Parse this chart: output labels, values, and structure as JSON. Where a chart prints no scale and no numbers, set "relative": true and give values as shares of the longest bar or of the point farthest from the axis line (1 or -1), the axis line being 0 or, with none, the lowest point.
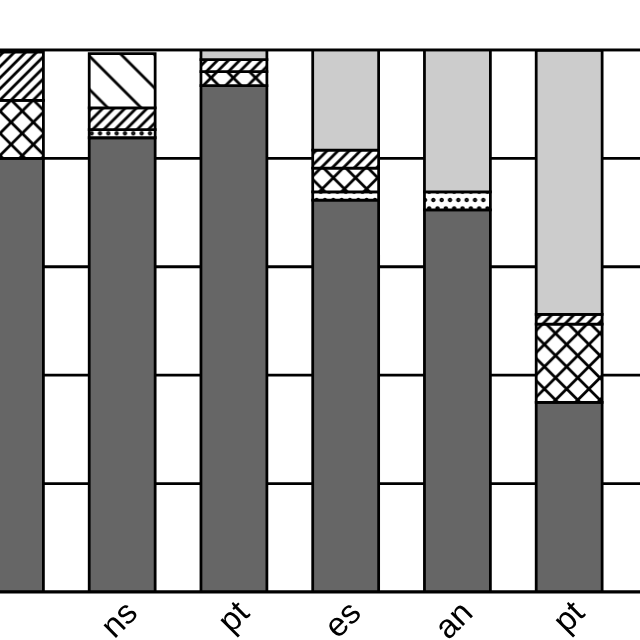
{
  "chart_data": {
    "type": "bar",
    "stacked": true,
    "relative": true,
    "grid": "y",
    "categories": [
      null,
      "ns",
      "pt",
      "es",
      "an",
      "pt"
    ],
    "series": [
      {
        "color": "#666666",
        "values": [
          0.8,
          0.838,
          0.934,
          0.723,
          0.705,
          0.35
        ]
      },
      {
        "color": "#000000",
        "values": [
          null,
          0.015,
          null,
          0.015,
          0.033,
          null
        ]
      },
      {
        "color": "#000000",
        "values": [
          0.107,
          null,
          0.026,
          0.044,
          null,
          0.144
        ]
      },
      {
        "color": "#000000",
        "values": [
          0.089,
          0.04,
          0.022,
          0.033,
          null,
          0.018
        ]
      },
      {
        "color": "#000000",
        "values": [
          null,
          0.1,
          null,
          null,
          null,
          null
        ]
      },
      {
        "color": "#cccccc",
        "values": [
          null,
          null,
          0.018,
          0.185,
          0.262,
          0.487
        ]
      }
    ]
  }
}
